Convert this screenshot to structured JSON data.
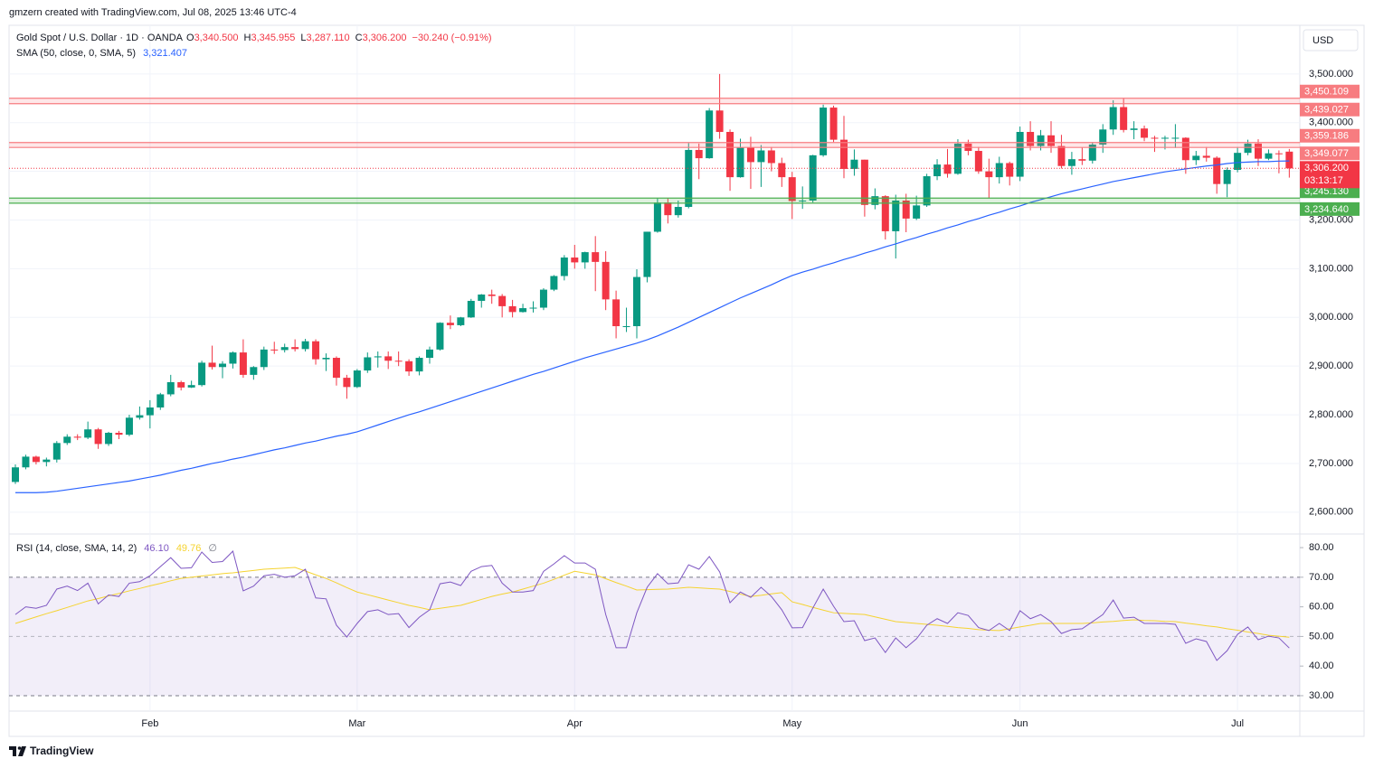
{
  "header": "gmzern created with TradingView.com, Jul 08, 2025 13:46 UTC-4",
  "footer": "TradingView",
  "chart_data": {
    "type": "candlestick",
    "title": "Gold Spot / U.S. Dollar · 1D · OANDA",
    "ohlc_legend": [
      {
        "key": "O",
        "value": "3,340.500"
      },
      {
        "key": "H",
        "value": "3,345.955"
      },
      {
        "key": "L",
        "value": "3,287.110"
      },
      {
        "key": "C",
        "value": "3,306.200"
      },
      {
        "value": "−30.240 (−0.91%)"
      }
    ],
    "currency": "USD",
    "up_color": "#089981",
    "down_color": "#f23645",
    "categories": [
      null,
      null,
      null,
      null,
      null,
      null,
      null,
      null,
      null,
      null,
      null,
      null,
      null,
      "Feb",
      null,
      null,
      null,
      null,
      null,
      null,
      null,
      null,
      null,
      null,
      null,
      null,
      null,
      null,
      null,
      null,
      null,
      null,
      null,
      "Mar",
      null,
      null,
      null,
      null,
      null,
      null,
      null,
      null,
      null,
      null,
      null,
      null,
      null,
      null,
      null,
      null,
      null,
      null,
      null,
      null,
      "Apr",
      null,
      null,
      null,
      null,
      null,
      null,
      null,
      null,
      null,
      null,
      null,
      null,
      null,
      null,
      null,
      null,
      null,
      null,
      null,
      null,
      "May",
      null,
      null,
      null,
      null,
      null,
      null,
      null,
      null,
      null,
      null,
      null,
      null,
      null,
      null,
      null,
      null,
      null,
      null,
      null,
      null,
      null,
      "Jun",
      null,
      null,
      null,
      null,
      null,
      null,
      null,
      null,
      null,
      null,
      null,
      null,
      null,
      null,
      null,
      null,
      null,
      null,
      null,
      null,
      "Jul",
      null,
      null,
      null,
      null,
      null
    ],
    "candles": [
      [
        2662,
        2698,
        2658,
        2692
      ],
      [
        2692,
        2718,
        2688,
        2714
      ],
      [
        2714,
        2716,
        2698,
        2703
      ],
      [
        2703,
        2712,
        2694,
        2708
      ],
      [
        2708,
        2746,
        2702,
        2742
      ],
      [
        2742,
        2760,
        2738,
        2755
      ],
      [
        2755,
        2760,
        2748,
        2753
      ],
      [
        2753,
        2786,
        2750,
        2770
      ],
      [
        2770,
        2773,
        2730,
        2740
      ],
      [
        2740,
        2765,
        2736,
        2763
      ],
      [
        2763,
        2767,
        2750,
        2759
      ],
      [
        2759,
        2800,
        2756,
        2794
      ],
      [
        2794,
        2817,
        2790,
        2799
      ],
      [
        2799,
        2830,
        2772,
        2815
      ],
      [
        2815,
        2845,
        2810,
        2842
      ],
      [
        2842,
        2882,
        2838,
        2867
      ],
      [
        2867,
        2870,
        2850,
        2856
      ],
      [
        2856,
        2870,
        2855,
        2861
      ],
      [
        2861,
        2911,
        2858,
        2907
      ],
      [
        2907,
        2942,
        2893,
        2898
      ],
      [
        2898,
        2910,
        2875,
        2905
      ],
      [
        2905,
        2930,
        2895,
        2928
      ],
      [
        2928,
        2955,
        2876,
        2882
      ],
      [
        2882,
        2900,
        2872,
        2898
      ],
      [
        2898,
        2940,
        2892,
        2934
      ],
      [
        2934,
        2950,
        2925,
        2933
      ],
      [
        2933,
        2946,
        2928,
        2939
      ],
      [
        2939,
        2955,
        2930,
        2935
      ],
      [
        2935,
        2956,
        2930,
        2951
      ],
      [
        2951,
        2955,
        2903,
        2914
      ],
      [
        2914,
        2926,
        2890,
        2917
      ],
      [
        2917,
        2920,
        2860,
        2876
      ],
      [
        2876,
        2882,
        2833,
        2857
      ],
      [
        2857,
        2894,
        2855,
        2891
      ],
      [
        2891,
        2928,
        2886,
        2918
      ],
      [
        2918,
        2930,
        2897,
        2920
      ],
      [
        2920,
        2930,
        2894,
        2911
      ],
      [
        2911,
        2930,
        2900,
        2910
      ],
      [
        2910,
        2914,
        2880,
        2889
      ],
      [
        2889,
        2920,
        2881,
        2917
      ],
      [
        2917,
        2940,
        2905,
        2934
      ],
      [
        2934,
        2990,
        2932,
        2989
      ],
      [
        2989,
        3004,
        2976,
        2984
      ],
      [
        2984,
        3001,
        2982,
        3000
      ],
      [
        3000,
        3038,
        2999,
        3034
      ],
      [
        3034,
        3048,
        3020,
        3047
      ],
      [
        3047,
        3057,
        3028,
        3044
      ],
      [
        3044,
        3048,
        3000,
        3023
      ],
      [
        3023,
        3036,
        3000,
        3011
      ],
      [
        3011,
        3028,
        3010,
        3019
      ],
      [
        3019,
        3033,
        3010,
        3020
      ],
      [
        3020,
        3060,
        3015,
        3057
      ],
      [
        3057,
        3087,
        3054,
        3085
      ],
      [
        3085,
        3128,
        3076,
        3123
      ],
      [
        3123,
        3149,
        3100,
        3113
      ],
      [
        3113,
        3135,
        3100,
        3134
      ],
      [
        3134,
        3167,
        3054,
        3114
      ],
      [
        3114,
        3136,
        3015,
        3037
      ],
      [
        3037,
        3055,
        2957,
        2982
      ],
      [
        2982,
        3020,
        2970,
        2982
      ],
      [
        2982,
        3099,
        2957,
        3083
      ],
      [
        3083,
        3176,
        3072,
        3176
      ],
      [
        3176,
        3245,
        3174,
        3236
      ],
      [
        3236,
        3245,
        3193,
        3210
      ],
      [
        3210,
        3240,
        3205,
        3227
      ],
      [
        3227,
        3358,
        3224,
        3344
      ],
      [
        3344,
        3357,
        3284,
        3327
      ],
      [
        3327,
        3430,
        3326,
        3425
      ],
      [
        3425,
        3500,
        3367,
        3381
      ],
      [
        3381,
        3386,
        3260,
        3288
      ],
      [
        3288,
        3367,
        3287,
        3349
      ],
      [
        3349,
        3371,
        3264,
        3319
      ],
      [
        3319,
        3354,
        3268,
        3343
      ],
      [
        3343,
        3350,
        3300,
        3317
      ],
      [
        3317,
        3328,
        3268,
        3288
      ],
      [
        3288,
        3299,
        3202,
        3239
      ],
      [
        3239,
        3269,
        3223,
        3240
      ],
      [
        3240,
        3334,
        3236,
        3333
      ],
      [
        3333,
        3437,
        3330,
        3431
      ],
      [
        3431,
        3435,
        3360,
        3365
      ],
      [
        3365,
        3414,
        3286,
        3305
      ],
      [
        3305,
        3345,
        3291,
        3324
      ],
      [
        3324,
        3324,
        3207,
        3231
      ],
      [
        3231,
        3265,
        3222,
        3249
      ],
      [
        3249,
        3251,
        3160,
        3177
      ],
      [
        3177,
        3252,
        3121,
        3240
      ],
      [
        3240,
        3254,
        3175,
        3203
      ],
      [
        3203,
        3250,
        3200,
        3230
      ],
      [
        3230,
        3295,
        3227,
        3290
      ],
      [
        3290,
        3325,
        3282,
        3314
      ],
      [
        3314,
        3346,
        3287,
        3295
      ],
      [
        3295,
        3366,
        3293,
        3357
      ],
      [
        3357,
        3365,
        3333,
        3342
      ],
      [
        3342,
        3350,
        3295,
        3300
      ],
      [
        3300,
        3326,
        3245,
        3288
      ],
      [
        3288,
        3330,
        3275,
        3317
      ],
      [
        3317,
        3320,
        3271,
        3289
      ],
      [
        3289,
        3392,
        3280,
        3381
      ],
      [
        3381,
        3403,
        3343,
        3352
      ],
      [
        3352,
        3385,
        3343,
        3374
      ],
      [
        3374,
        3403,
        3338,
        3352
      ],
      [
        3352,
        3375,
        3306,
        3311
      ],
      [
        3311,
        3340,
        3293,
        3325
      ],
      [
        3325,
        3349,
        3313,
        3322
      ],
      [
        3322,
        3360,
        3316,
        3355
      ],
      [
        3355,
        3397,
        3338,
        3386
      ],
      [
        3386,
        3446,
        3375,
        3432
      ],
      [
        3432,
        3451,
        3380,
        3385
      ],
      [
        3385,
        3403,
        3366,
        3388
      ],
      [
        3388,
        3394,
        3362,
        3369
      ],
      [
        3369,
        3373,
        3340,
        3368
      ],
      [
        3368,
        3373,
        3345,
        3369
      ],
      [
        3369,
        3397,
        3348,
        3369
      ],
      [
        3369,
        3370,
        3295,
        3323
      ],
      [
        3323,
        3342,
        3313,
        3332
      ],
      [
        3332,
        3350,
        3320,
        3328
      ],
      [
        3328,
        3331,
        3254,
        3274
      ],
      [
        3274,
        3308,
        3247,
        3303
      ],
      [
        3303,
        3350,
        3298,
        3338
      ],
      [
        3338,
        3365,
        3333,
        3357
      ],
      [
        3357,
        3366,
        3311,
        3326
      ],
      [
        3326,
        3345,
        3323,
        3337
      ],
      [
        3337,
        3343,
        3296,
        3336.44
      ],
      [
        3340.5,
        3345.955,
        3287.11,
        3306.2
      ]
    ],
    "ylim": [
      2557,
      3600
    ],
    "yticks": [
      {
        "value": 2600,
        "label": "2,600.000"
      },
      {
        "value": 2700,
        "label": "2,700.000"
      },
      {
        "value": 2800,
        "label": "2,800.000"
      },
      {
        "value": 2900,
        "label": "2,900.000"
      },
      {
        "value": 3000,
        "label": "3,000.000"
      },
      {
        "value": 3100,
        "label": "3,100.000"
      },
      {
        "value": 3200,
        "label": "3,200.000"
      },
      {
        "value": 3300,
        "label": "3,300.000"
      },
      {
        "value": 3400,
        "label": "3,400.000"
      },
      {
        "value": 3500,
        "label": "3,500.000"
      }
    ],
    "sma": {
      "name": "SMA (50, close, 0, SMA, 5)",
      "value_label": "3,321.407",
      "color": "#2962ff",
      "values": [
        2640,
        2640,
        2640,
        2641,
        2643,
        2646,
        2649,
        2652,
        2655,
        2658,
        2661,
        2664,
        2668,
        2672,
        2676,
        2681,
        2686,
        2690,
        2695,
        2700,
        2704,
        2709,
        2713,
        2718,
        2723,
        2728,
        2732,
        2737,
        2742,
        2746,
        2751,
        2756,
        2760,
        2765,
        2772,
        2779,
        2786,
        2793,
        2800,
        2806,
        2813,
        2820,
        2827,
        2834,
        2841,
        2848,
        2855,
        2862,
        2869,
        2876,
        2883,
        2889,
        2896,
        2903,
        2910,
        2917,
        2923,
        2929,
        2935,
        2941,
        2947,
        2954,
        2962,
        2971,
        2980,
        2990,
        3000,
        3010,
        3020,
        3030,
        3040,
        3049,
        3058,
        3067,
        3077,
        3086,
        3093,
        3099,
        3106,
        3112,
        3119,
        3125,
        3132,
        3138,
        3145,
        3151,
        3158,
        3164,
        3171,
        3177,
        3184,
        3190,
        3197,
        3203,
        3210,
        3216,
        3223,
        3229,
        3236,
        3242,
        3248,
        3254,
        3259,
        3264,
        3269,
        3274,
        3279,
        3283,
        3287,
        3291,
        3295,
        3299,
        3302,
        3305,
        3308,
        3311,
        3313,
        3316,
        3318,
        3319,
        3320,
        3320,
        3321,
        3321.407
      ]
    },
    "levels": [
      {
        "value": 3450.109,
        "label": "3,450.109",
        "color": "#f77c80"
      },
      {
        "value": 3439.027,
        "label": "3,439.027",
        "color": "#f77c80"
      },
      {
        "value": 3359.186,
        "label": "3,359.186",
        "color": "#f77c80"
      },
      {
        "value": 3349.077,
        "label": "3,349.077",
        "color": "#f77c80"
      },
      {
        "value": 3245.13,
        "label": "3,245.130",
        "color": "#4caf50"
      },
      {
        "value": 3234.64,
        "label": "3,234.640",
        "color": "#4caf50"
      }
    ],
    "last_price": {
      "value": 3306.2,
      "label": "3,306.200",
      "countdown": "03:13:17",
      "color": "#f23645"
    },
    "rsi": {
      "name": "RSI (14, close, SMA, 14, 2)",
      "value_label": "46.10",
      "ma_label": "49.76",
      "extra": "∅",
      "color": "#7e57c2",
      "ma_color": "#f5d330",
      "ylim": [
        24.8,
        84.3
      ],
      "yticks": [
        {
          "value": 30,
          "label": "30.00"
        },
        {
          "value": 40,
          "label": "40.00"
        },
        {
          "value": 50,
          "label": "50.00"
        },
        {
          "value": 60,
          "label": "60.00"
        },
        {
          "value": 70,
          "label": "70.00"
        },
        {
          "value": 80,
          "label": "80.00"
        }
      ],
      "bands": [
        70,
        50,
        30
      ],
      "values": [
        57.4,
        60,
        59.5,
        60.5,
        66,
        67,
        65.5,
        68,
        61,
        64,
        63.5,
        68,
        68.5,
        70.5,
        73.6,
        76.6,
        73,
        73.2,
        78.5,
        75,
        75.3,
        78.8,
        65.4,
        67,
        70.5,
        71,
        70,
        70.5,
        72.7,
        63,
        62.7,
        53.8,
        49.8,
        54.4,
        58.4,
        59,
        57.4,
        57.7,
        53,
        56.5,
        59,
        67.8,
        68.4,
        67.2,
        72,
        73.6,
        74,
        68,
        65,
        65,
        65.5,
        72,
        74.5,
        77.3,
        74.8,
        74.8,
        72.7,
        57.4,
        46.2,
        46.2,
        58,
        66.6,
        71.2,
        67.8,
        68.1,
        74.2,
        72.7,
        77,
        71.8,
        61.4,
        65,
        63.2,
        66.6,
        63.5,
        59,
        52.9,
        53,
        59.6,
        66,
        60.2,
        55,
        55.3,
        48.6,
        49.5,
        44.6,
        49.5,
        46.2,
        49.2,
        53.8,
        56,
        54.4,
        58,
        57.1,
        53,
        52,
        54.4,
        52,
        58.7,
        56,
        57.4,
        55,
        51,
        52.3,
        52.6,
        55,
        57.4,
        62.3,
        56.2,
        56.5,
        54.4,
        54.4,
        54.4,
        54.1,
        47.7,
        49.2,
        48.3,
        41.9,
        45.2,
        50.7,
        53.2,
        48.9,
        50.1,
        49.5,
        46.1
      ],
      "ma_values": [
        54.4,
        55.5,
        56.6,
        57.7,
        58.7,
        59.8,
        60.9,
        62,
        62.8,
        63.7,
        64.5,
        65.4,
        66.2,
        67.1,
        67.9,
        68.8,
        69.6,
        70,
        70.4,
        70.8,
        71.2,
        71.5,
        71.9,
        72.3,
        72.7,
        72.9,
        73.1,
        73.3,
        72.1,
        70.8,
        69.6,
        68.1,
        66.5,
        65,
        64.1,
        63.2,
        62.3,
        61.4,
        60.5,
        59.8,
        59,
        59.5,
        60,
        60.5,
        61.5,
        62.5,
        63.5,
        64.3,
        65,
        66,
        67,
        68,
        69.3,
        70.7,
        72,
        71.4,
        70.8,
        69.5,
        68.2,
        67,
        65.7,
        65.8,
        65.9,
        66,
        66.3,
        66.6,
        66.4,
        66.2,
        66,
        65.2,
        64.3,
        63.5,
        63.9,
        64.4,
        64.8,
        61.7,
        60.8,
        59.8,
        58.9,
        58,
        57.8,
        57.6,
        57.4,
        56.6,
        55.8,
        55,
        54.7,
        54.4,
        54.1,
        53.8,
        53.4,
        53,
        52.7,
        52.3,
        52.1,
        52,
        52.6,
        53.2,
        53.8,
        54.4,
        54.4,
        54.4,
        54.4,
        54.4,
        54.6,
        54.9,
        55.1,
        55.4,
        55.6,
        55.4,
        55.3,
        55.1,
        55,
        54.5,
        54.1,
        53.6,
        53.2,
        52.6,
        52.1,
        51.5,
        51,
        50.4,
        50.1,
        49.76
      ]
    }
  }
}
